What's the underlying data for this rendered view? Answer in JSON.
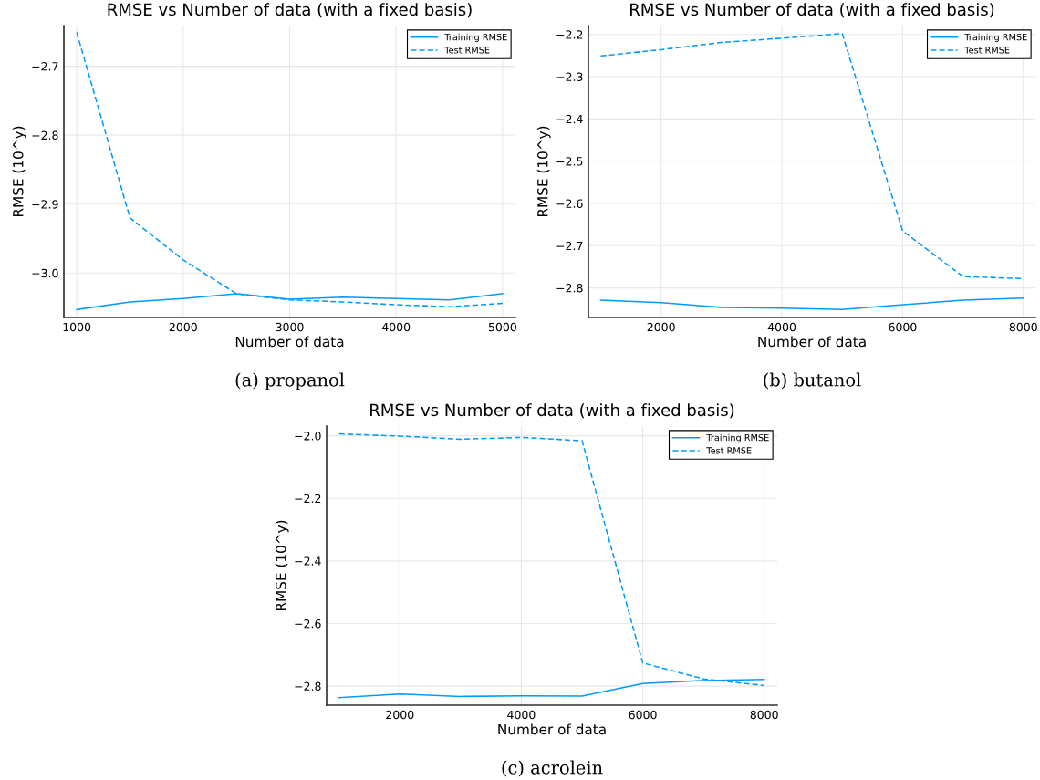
{
  "chart_data": [
    {
      "type": "line",
      "title": "RMSE vs Number of data (with a fixed basis)",
      "xlabel": "Number of data",
      "ylabel": "RMSE (10^y)",
      "annotations": [
        "(a) propanol"
      ],
      "x": [
        1000,
        1500,
        2000,
        2500,
        3000,
        3500,
        4000,
        4500,
        5000
      ],
      "xlim": [
        879,
        5121
      ],
      "ylim": [
        -3.0645,
        -2.641
      ],
      "xticks": [
        1000,
        2000,
        3000,
        4000,
        5000
      ],
      "yticks": [
        {
          "value": -3.0,
          "label": "−3.0"
        },
        {
          "value": -2.9,
          "label": "−2.9"
        },
        {
          "value": -2.8,
          "label": "−2.8"
        },
        {
          "value": -2.7,
          "label": "−2.7"
        }
      ],
      "grid": true,
      "legend": "top right",
      "series": [
        {
          "name": "Training RMSE",
          "color": "#009af9",
          "line_style": "solid",
          "values": [
            -3.053,
            -3.042,
            -3.037,
            -3.03,
            -3.038,
            -3.035,
            -3.037,
            -3.039,
            -3.03
          ]
        },
        {
          "name": "Test RMSE",
          "color": "#009af9",
          "line_style": "dashed",
          "values": [
            -2.651,
            -2.92,
            -2.981,
            -3.03,
            -3.039,
            -3.042,
            -3.046,
            -3.049,
            -3.044
          ]
        }
      ]
    },
    {
      "type": "line",
      "title": "RMSE vs Number of data (with a fixed basis)",
      "xlabel": "Number of data",
      "ylabel": "RMSE (10^y)",
      "annotations": [
        "(b) butanol"
      ],
      "x": [
        1000,
        2000,
        3000,
        4000,
        5000,
        6000,
        7000,
        8000
      ],
      "xlim": [
        796,
        8200
      ],
      "ylim": [
        -2.87,
        -2.179
      ],
      "xticks": [
        2000,
        4000,
        6000,
        8000
      ],
      "yticks": [
        {
          "value": -2.8,
          "label": "−2.8"
        },
        {
          "value": -2.7,
          "label": "−2.7"
        },
        {
          "value": -2.6,
          "label": "−2.6"
        },
        {
          "value": -2.5,
          "label": "−2.5"
        },
        {
          "value": -2.4,
          "label": "−2.4"
        },
        {
          "value": -2.3,
          "label": "−2.3"
        },
        {
          "value": -2.2,
          "label": "−2.2"
        }
      ],
      "grid": true,
      "legend": "top right",
      "series": [
        {
          "name": "Training RMSE",
          "color": "#009af9",
          "line_style": "solid",
          "values": [
            -2.829,
            -2.835,
            -2.846,
            -2.848,
            -2.851,
            -2.84,
            -2.829,
            -2.824
          ]
        },
        {
          "name": "Test RMSE",
          "color": "#009af9",
          "line_style": "dashed",
          "values": [
            -2.251,
            -2.236,
            -2.219,
            -2.209,
            -2.198,
            -2.665,
            -2.773,
            -2.778
          ]
        }
      ]
    },
    {
      "type": "line",
      "title": "RMSE vs Number of data (with a fixed basis)",
      "xlabel": "Number of data",
      "ylabel": "RMSE (10^y)",
      "annotations": [
        "(c) acrolein"
      ],
      "x": [
        1000,
        2000,
        3000,
        4000,
        5000,
        6000,
        7000,
        8000
      ],
      "xlim": [
        794,
        8215
      ],
      "ylim": [
        -2.861,
        -1.969
      ],
      "xticks": [
        2000,
        4000,
        6000,
        8000
      ],
      "yticks": [
        {
          "value": -2.8,
          "label": "−2.8"
        },
        {
          "value": -2.6,
          "label": "−2.6"
        },
        {
          "value": -2.4,
          "label": "−2.4"
        },
        {
          "value": -2.2,
          "label": "−2.2"
        },
        {
          "value": -2.0,
          "label": "−2.0"
        }
      ],
      "grid": true,
      "legend": "top right",
      "series": [
        {
          "name": "Training RMSE",
          "color": "#009af9",
          "line_style": "solid",
          "values": [
            -2.837,
            -2.825,
            -2.833,
            -2.831,
            -2.832,
            -2.792,
            -2.782,
            -2.779
          ]
        },
        {
          "name": "Test RMSE",
          "color": "#009af9",
          "line_style": "dashed",
          "values": [
            -1.994,
            -2.001,
            -2.011,
            -2.005,
            -2.016,
            -2.726,
            -2.777,
            -2.798
          ]
        }
      ]
    }
  ]
}
